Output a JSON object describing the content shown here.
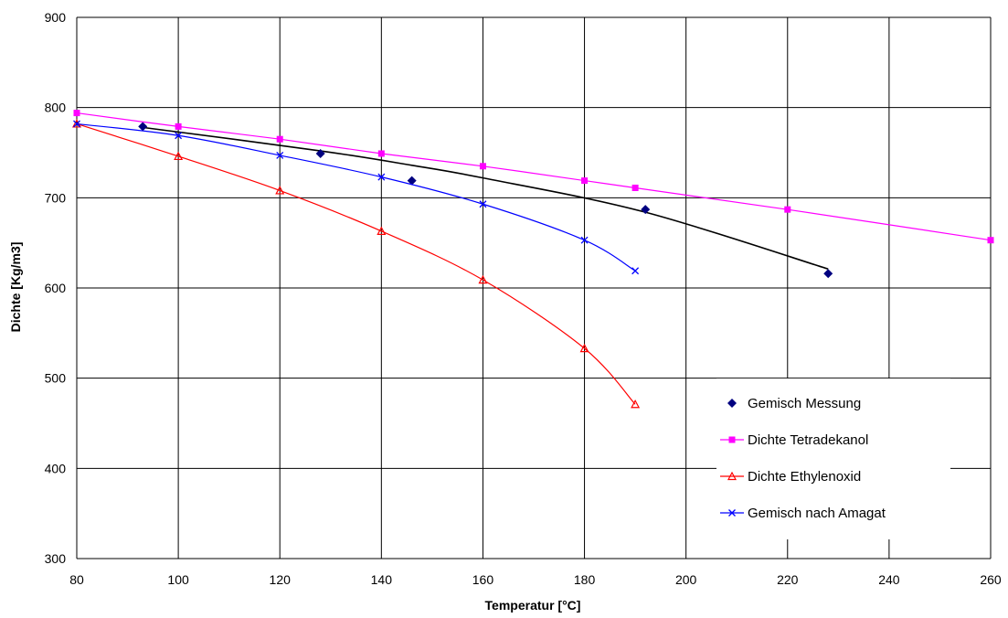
{
  "chart_data": {
    "type": "scatter",
    "title": "",
    "xlabel": "Temperatur [°C]",
    "ylabel": "Dichte [Kg/m3]",
    "xlim": [
      80,
      260
    ],
    "ylim": [
      300,
      900
    ],
    "xticks": [
      80,
      100,
      120,
      140,
      160,
      180,
      200,
      220,
      240,
      260
    ],
    "yticks": [
      300,
      400,
      500,
      600,
      700,
      800,
      900
    ],
    "grid": true,
    "legend_position": "right",
    "series": [
      {
        "name": "Gemisch Messung",
        "kind": "markers",
        "marker": "diamond",
        "color": "#000080",
        "x": [
          93,
          128,
          146,
          192,
          228
        ],
        "y": [
          779,
          749,
          719,
          687,
          616
        ]
      },
      {
        "name": "Dichte Tetradekanol",
        "kind": "line-markers",
        "marker": "square",
        "color": "#FF00FF",
        "x": [
          80,
          100,
          120,
          140,
          160,
          180,
          190,
          220,
          260
        ],
        "y": [
          794,
          779,
          765,
          749,
          735,
          719,
          711,
          687,
          653
        ]
      },
      {
        "name": "Dichte Ethylenoxid",
        "kind": "line-markers",
        "marker": "triangle",
        "color": "#FF0000",
        "x": [
          80,
          100,
          120,
          140,
          160,
          180,
          190
        ],
        "y": [
          782,
          746,
          708,
          663,
          609,
          533,
          471
        ]
      },
      {
        "name": "Gemisch nach Amagat",
        "kind": "line-markers",
        "marker": "x",
        "color": "#0000FF",
        "x": [
          80,
          100,
          120,
          140,
          160,
          180,
          190
        ],
        "y": [
          782,
          769,
          747,
          723,
          693,
          653,
          619
        ]
      }
    ],
    "trendline": {
      "color": "#000000",
      "x": [
        93,
        128,
        146,
        160,
        192,
        228
      ],
      "y": [
        778,
        752,
        736,
        722,
        684,
        621
      ]
    }
  }
}
